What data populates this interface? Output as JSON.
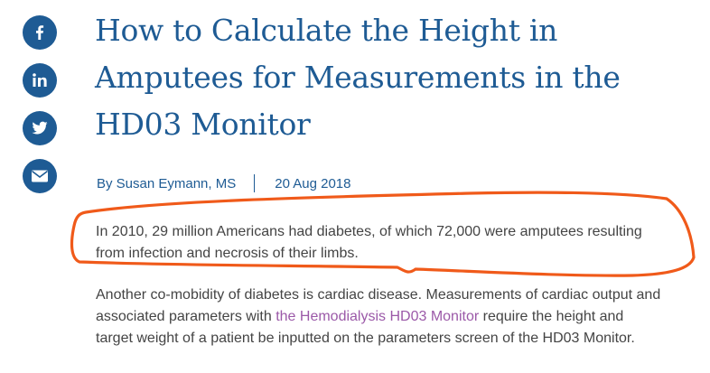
{
  "share": {
    "facebook_icon": "facebook-icon",
    "linkedin_icon": "linkedin-icon",
    "twitter_icon": "twitter-icon",
    "email_icon": "envelope-icon",
    "button_color": "#1e5b94"
  },
  "article": {
    "title_line_1": "How to Calculate the Height in",
    "title_line_2": "Amputees for Measurements in the",
    "title_line_3": "HD03 Monitor",
    "author": "By Susan Eymann, MS",
    "date": "20 Aug 2018",
    "paragraph_1_line_1": "In 2010, 29 million Americans had diabetes, of which 72,000 were amputees resulting",
    "paragraph_1_line_2": "from infection and necrosis of their limbs.",
    "paragraph_2_line_1": "Another co-mobidity of diabetes is cardiac disease. Measurements of cardiac output and",
    "paragraph_2_line_2_before": "associated parameters with ",
    "paragraph_2_link": "the Hemodialysis HD03 Monitor",
    "paragraph_2_line_2_after": " require the height and",
    "paragraph_2_line_3": "target weight of a patient be inputted on the parameters screen of the HD03 Monitor."
  },
  "colors": {
    "title": "#1e5b94",
    "body_text": "#444444",
    "link": "#9b59a8",
    "annotation": "#f05a1a"
  }
}
